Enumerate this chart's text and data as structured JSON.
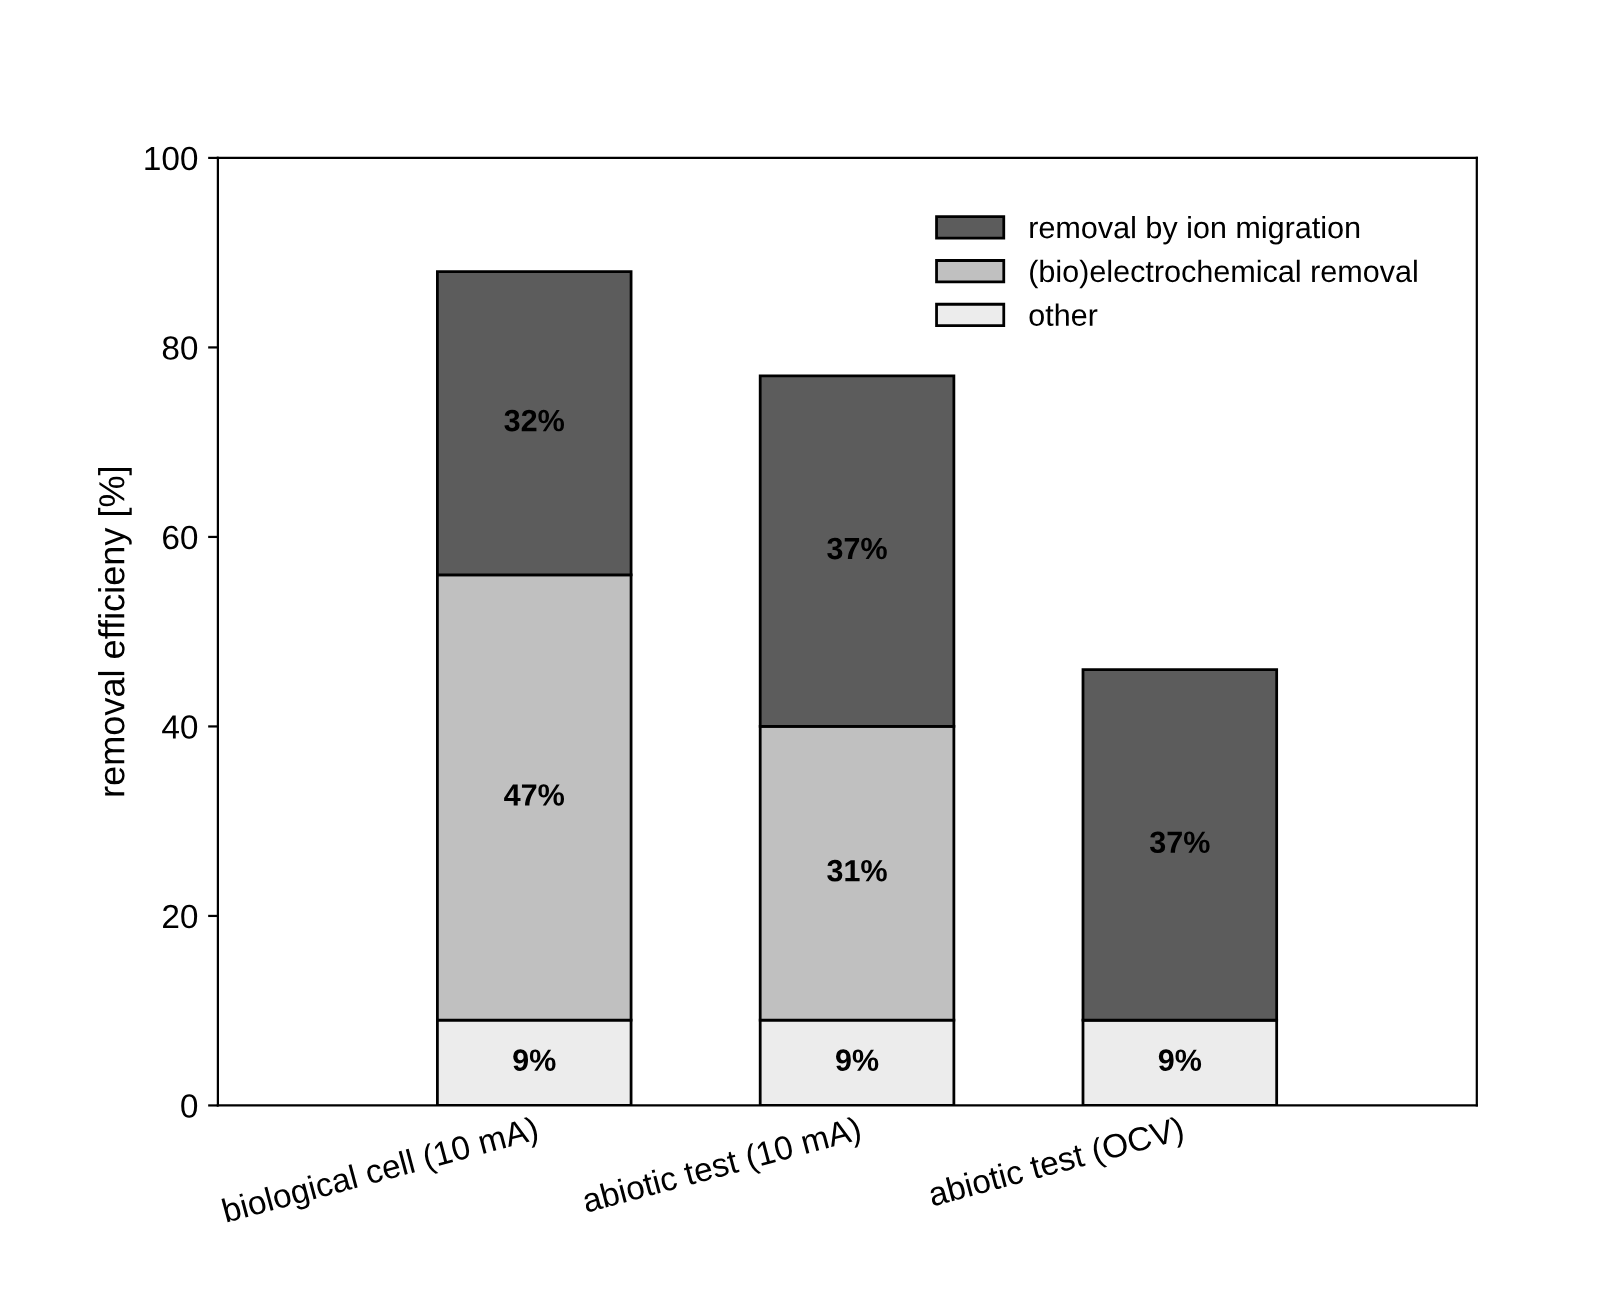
{
  "chart_data": {
    "type": "bar",
    "stacked": true,
    "ylabel": "removal efficieny [%]",
    "categories": [
      "biological cell (10 mA)",
      "abiotic test (10 mA)",
      "abiotic test (OCV)"
    ],
    "series": [
      {
        "name": "other",
        "color": "#ececec",
        "values": [
          9,
          9,
          9
        ],
        "value_labels": [
          "9%",
          "9%",
          "9%"
        ]
      },
      {
        "name": "(bio)electrochemical removal",
        "color": "#c0c0c0",
        "values": [
          47,
          31,
          0
        ],
        "value_labels": [
          "47%",
          "31%",
          null
        ]
      },
      {
        "name": "removal by ion migration",
        "color": "#5c5c5c",
        "values": [
          32,
          37,
          37
        ],
        "value_labels": [
          "32%",
          "37%",
          "37%"
        ]
      }
    ],
    "ylim": [
      0,
      100
    ],
    "yticks": [
      0,
      20,
      40,
      60,
      80,
      100
    ],
    "grid": false,
    "legend": "top right"
  }
}
